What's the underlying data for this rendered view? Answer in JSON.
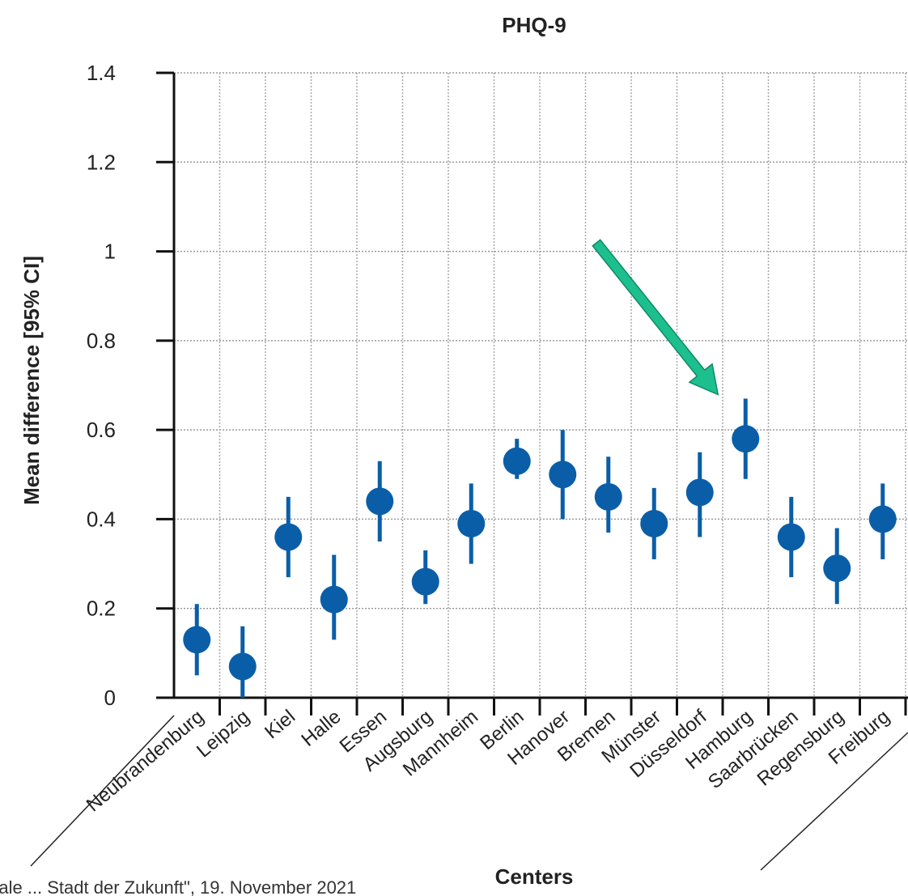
{
  "chart_data": {
    "type": "scatter",
    "title": "PHQ-9",
    "xlabel": "Centers",
    "ylabel": "Mean difference [95% CI]",
    "ylim": [
      0,
      1.4
    ],
    "yticks": [
      "0",
      "0.2",
      "0.4",
      "0.6",
      "0.8",
      "1",
      "1.2",
      "1.4"
    ],
    "grid": true,
    "point_color": "#0a5ea8",
    "arrow_color": "#1dbf8f",
    "arrow_target": "Hamburg",
    "categories": [
      "Neubrandenburg",
      "Leipzig",
      "Kiel",
      "Halle",
      "Essen",
      "Augsburg",
      "Mannheim",
      "Berlin",
      "Hanover",
      "Bremen",
      "Münster",
      "Düsseldorf",
      "Hamburg",
      "Saarbrücken",
      "Regensburg",
      "Freiburg"
    ],
    "series": [
      {
        "values": [
          0.13,
          0.07,
          0.36,
          0.22,
          0.44,
          0.26,
          0.39,
          0.53,
          0.5,
          0.45,
          0.39,
          0.46,
          0.58,
          0.36,
          0.29,
          0.4
        ],
        "ci_low": [
          0.05,
          0.0,
          0.27,
          0.13,
          0.35,
          0.21,
          0.3,
          0.49,
          0.4,
          0.37,
          0.31,
          0.36,
          0.49,
          0.27,
          0.21,
          0.31
        ],
        "ci_high": [
          0.21,
          0.16,
          0.45,
          0.32,
          0.53,
          0.33,
          0.48,
          0.58,
          0.6,
          0.54,
          0.47,
          0.55,
          0.67,
          0.45,
          0.38,
          0.48
        ]
      }
    ]
  },
  "footer_text": "...ale ... Stadt der Zukunft\", 19. November 2021"
}
